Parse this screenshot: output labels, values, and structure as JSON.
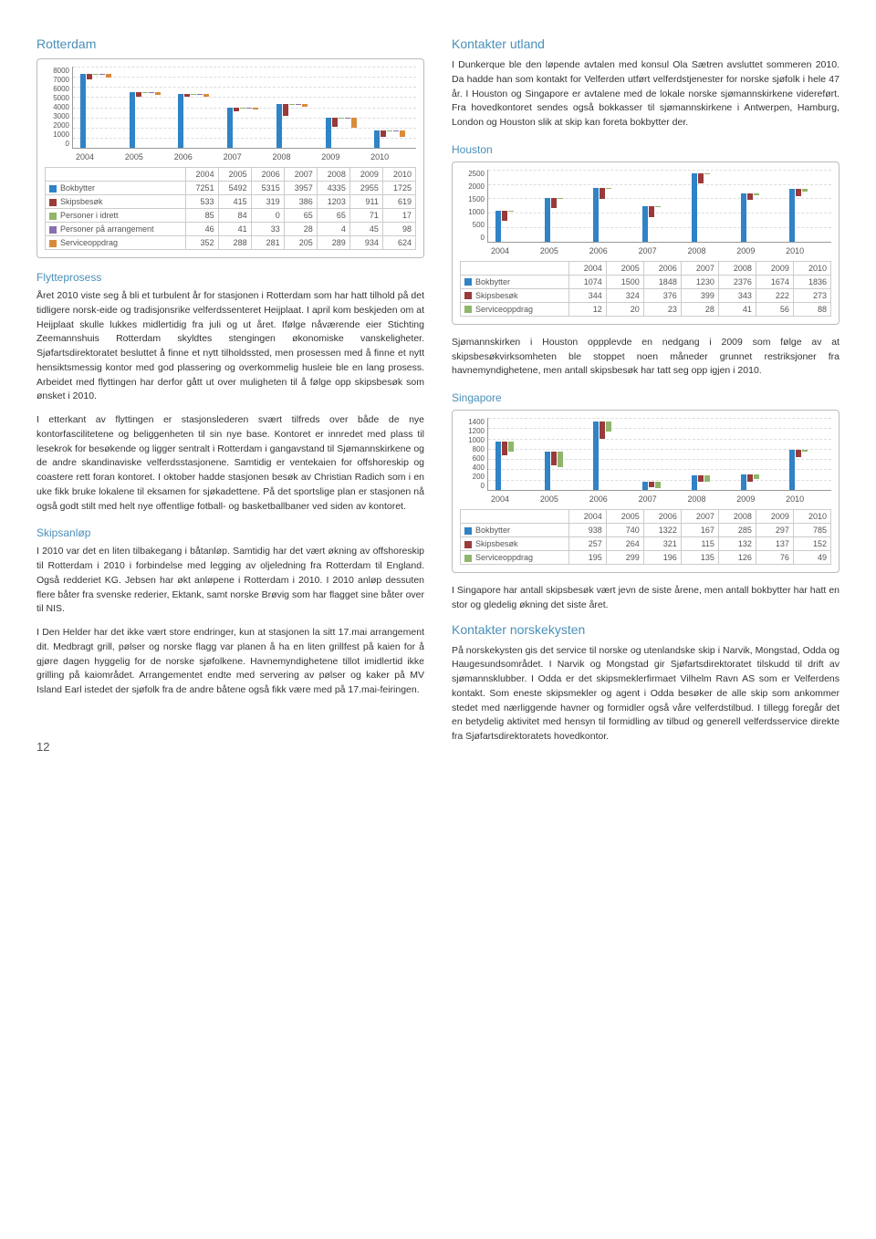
{
  "page_number": "12",
  "colors": {
    "heading": "#4a90b8",
    "series": [
      "#2f83c6",
      "#9a3a3a",
      "#8fb66a",
      "#8b6fb0",
      "#d98b3a"
    ]
  },
  "left": {
    "rotterdam": {
      "title": "Rotterdam",
      "chart": {
        "type": "bar",
        "categories": [
          "2004",
          "2005",
          "2006",
          "2007",
          "2008",
          "2009",
          "2010"
        ],
        "y_ticks": [
          "8000",
          "7000",
          "6000",
          "5000",
          "4000",
          "3000",
          "2000",
          "1000",
          "0"
        ],
        "ymax": 8000,
        "series": [
          {
            "label": "Bokbytter",
            "color": "#2f83c6",
            "values": [
              7251,
              5492,
              5315,
              3957,
              4335,
              2955,
              1725
            ]
          },
          {
            "label": "Skipsbesøk",
            "color": "#9a3a3a",
            "values": [
              533,
              415,
              319,
              386,
              1203,
              911,
              619
            ]
          },
          {
            "label": "Personer i idrett",
            "color": "#8fb66a",
            "values": [
              85,
              84,
              0,
              65,
              65,
              71,
              17
            ]
          },
          {
            "label": "Personer på arrangement",
            "color": "#8b6fb0",
            "values": [
              46,
              41,
              33,
              28,
              4,
              45,
              98
            ]
          },
          {
            "label": "Serviceoppdrag",
            "color": "#d98b3a",
            "values": [
              352,
              288,
              281,
              205,
              289,
              934,
              624
            ]
          }
        ]
      }
    },
    "flytteprosess": {
      "title": "Flytteprosess",
      "p1": "Året 2010 viste seg å bli et turbulent år for stasjonen i Rotterdam som har hatt tilhold på det tidligere norsk-eide og tradisjonsrike velferdssenteret Heijplaat. I april kom beskjeden om at Heijplaat skulle lukkes midlertidig fra juli og ut året. Ifølge nåværende eier Stichting Zeemannshuis Rotterdam skyldtes stengingen økonomiske vanskeligheter. Sjøfartsdirektoratet besluttet å finne et nytt tilholdssted, men prosessen med å finne et nytt hensiktsmessig kontor med god plassering og overkommelig husleie ble en lang prosess. Arbeidet med flyttingen har derfor gått ut over muligheten til å følge opp skipsbesøk som ønsket i 2010.",
      "p2": "I etterkant av flyttingen er stasjonslederen svært tilfreds over både de nye kontorfascilitetene og beliggenheten til sin nye base. Kontoret er innredet med plass til lesekrok for besøkende og ligger sentralt i Rotterdam i gangavstand til Sjømannskirkene og de andre skandinaviske velferdsstasjonene. Samtidig er ventekaien for offshoreskip og coastere rett foran kontoret. I oktober hadde stasjonen besøk av Christian Radich som i en uke fikk bruke lokalene til eksamen for sjøkadettene. På det sportslige plan er stasjonen nå også godt stilt med helt nye offentlige fotball- og basketballbaner ved siden av kontoret."
    },
    "skipsanlop": {
      "title": "Skipsanløp",
      "p1": "I 2010 var det en liten tilbakegang i båtanløp. Samtidig har det vært økning av offshoreskip til Rotterdam i 2010 i forbindelse med legging av oljeledning fra Rotterdam til England. Også redderiet KG. Jebsen har økt anløpene i Rotterdam i 2010. I 2010 anløp dessuten flere båter fra svenske rederier, Ektank, samt norske Brøvig som har flagget sine båter over til NIS.",
      "p2": "I Den Helder har det ikke vært store endringer, kun at stasjonen la sitt 17.mai arrangement dit. Medbragt grill, pølser og norske flagg var planen å ha en liten grillfest på kaien for å gjøre dagen hyggelig for de norske sjøfolkene. Havnemyndighetene tillot imidlertid ikke grilling på kaiområdet. Arrangementet endte med servering av pølser og kaker på MV Island Earl istedet der sjøfolk fra de andre båtene også fikk være med på 17.mai-feiringen."
    }
  },
  "right": {
    "kontakter_utland": {
      "title": "Kontakter utland",
      "p1": "I Dunkerque ble den løpende avtalen med konsul Ola Sætren avsluttet sommeren 2010. Da hadde han som kontakt for Velferden utført velferdstjenester for norske sjøfolk i hele 47 år. I Houston og Singapore er avtalene med de lokale norske sjømannskirkene videreført. Fra hovedkontoret sendes også bokkasser til sjømannskirkene i Antwerpen, Hamburg, London og Houston slik at skip kan foreta bokbytter der."
    },
    "houston": {
      "title": "Houston",
      "chart": {
        "type": "bar",
        "categories": [
          "2004",
          "2005",
          "2006",
          "2007",
          "2008",
          "2009",
          "2010"
        ],
        "y_ticks": [
          "2500",
          "2000",
          "1500",
          "1000",
          "500",
          "0"
        ],
        "ymax": 2500,
        "series": [
          {
            "label": "Bokbytter",
            "color": "#2f83c6",
            "values": [
              1074,
              1500,
              1848,
              1230,
              2376,
              1674,
              1836
            ]
          },
          {
            "label": "Skipsbesøk",
            "color": "#9a3a3a",
            "values": [
              344,
              324,
              376,
              399,
              343,
              222,
              273
            ]
          },
          {
            "label": "Serviceoppdrag",
            "color": "#8fb66a",
            "values": [
              12,
              20,
              23,
              28,
              41,
              56,
              88
            ]
          }
        ]
      },
      "p1": "Sjømannskirken i Houston oppplevde en nedgang i 2009 som følge av at skipsbesøkvirksomheten ble stoppet noen måneder grunnet restriksjoner fra havnemyndighetene, men antall skipsbesøk har tatt seg opp igjen i 2010."
    },
    "singapore": {
      "title": "Singapore",
      "chart": {
        "type": "bar",
        "categories": [
          "2004",
          "2005",
          "2006",
          "2007",
          "2008",
          "2009",
          "2010"
        ],
        "y_ticks": [
          "1400",
          "1200",
          "1000",
          "800",
          "600",
          "400",
          "200",
          "0"
        ],
        "ymax": 1400,
        "series": [
          {
            "label": "Bokbytter",
            "color": "#2f83c6",
            "values": [
              938,
              740,
              1322,
              167,
              285,
              297,
              785
            ]
          },
          {
            "label": "Skipsbesøk",
            "color": "#9a3a3a",
            "values": [
              257,
              264,
              321,
              115,
              132,
              137,
              152
            ]
          },
          {
            "label": "Serviceoppdrag",
            "color": "#8fb66a",
            "values": [
              195,
              299,
              196,
              135,
              126,
              76,
              49
            ]
          }
        ]
      },
      "p1": "I Singapore har antall skipsbesøk vært jevn de siste årene, men antall bokbytter har hatt en stor og gledelig økning det siste året."
    },
    "norskekysten": {
      "title": "Kontakter norskekysten",
      "p1": "På norskekysten gis det service til norske og utenlandske skip i Narvik, Mongstad, Odda og Haugesundsområdet. I Narvik og Mongstad gir Sjøfartsdirektoratet tilskudd til drift av sjømannsklubber. I Odda er det skipsmeklerfirmaet Vilhelm Ravn AS som er Velferdens kontakt. Som eneste skipsmekler og agent i Odda besøker de alle skip som ankommer stedet med nærliggende havner og formidler også våre velferdstilbud. I tillegg foregår det en betydelig aktivitet med hensyn til formidling av tilbud og generell velferdsservice direkte fra Sjøfartsdirektoratets hovedkontor."
    }
  }
}
